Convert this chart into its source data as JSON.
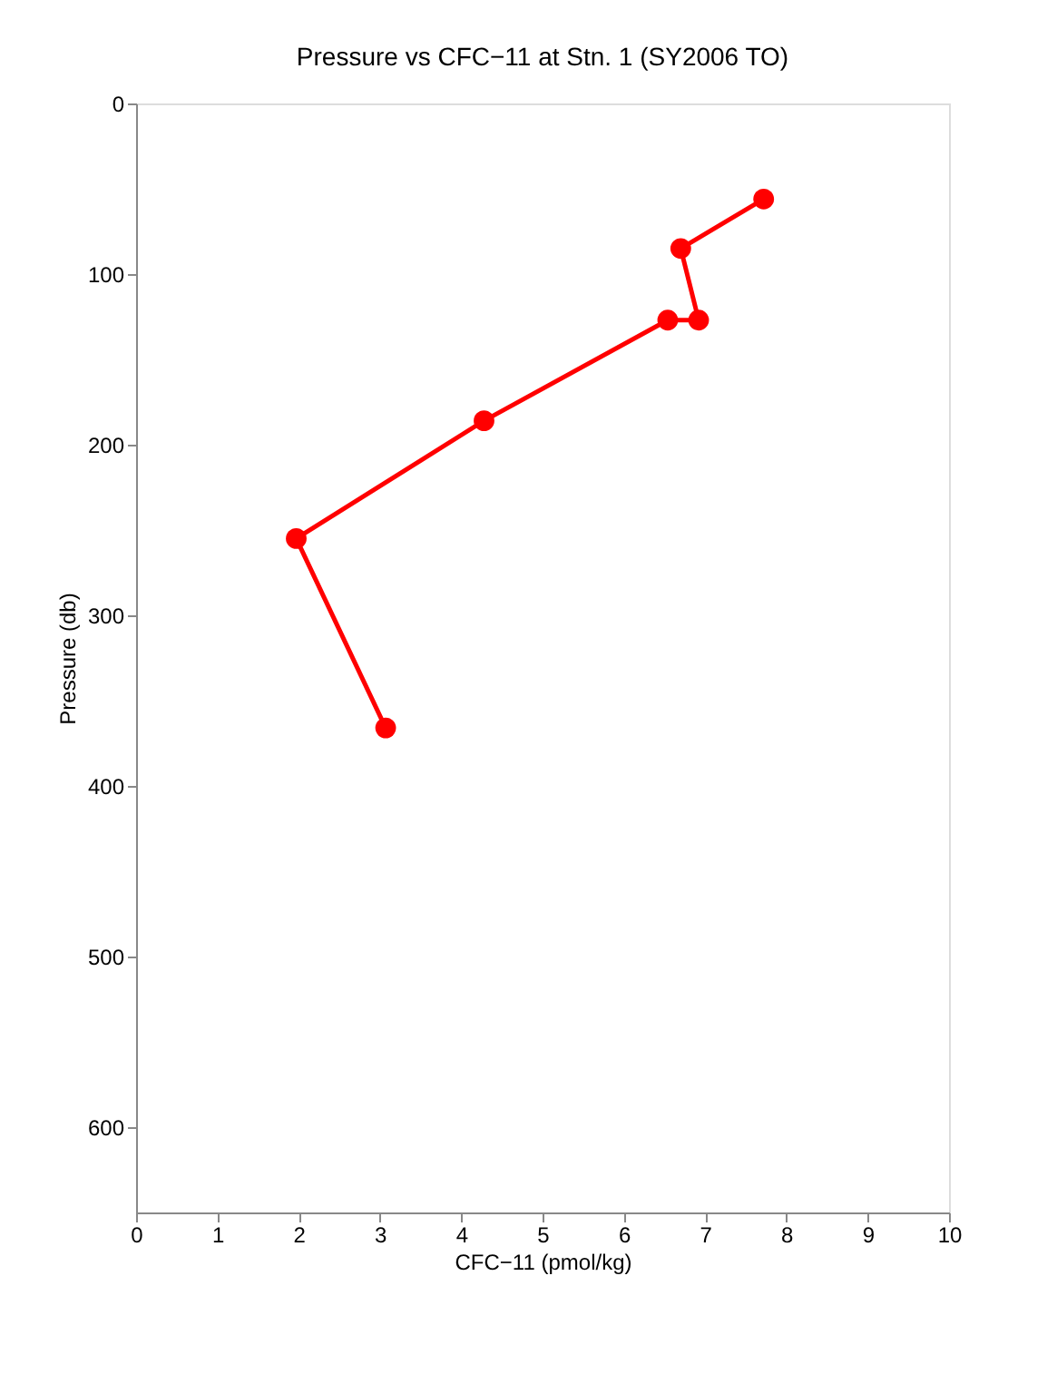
{
  "chart_data": {
    "type": "line",
    "title": "Pressure vs CFC−11 at Stn. 1 (SY2006 TO)",
    "xlabel": "CFC−11 (pmol/kg)",
    "ylabel": "Pressure (db)",
    "series": [
      {
        "color": "#ff0000",
        "x": [
          7.72,
          6.7,
          6.92,
          6.54,
          4.28,
          1.97,
          3.07
        ],
        "values": [
          56,
          85,
          127,
          127,
          186,
          255,
          366
        ]
      }
    ],
    "xlim": [
      0,
      10
    ],
    "xticks": [
      0,
      1,
      2,
      3,
      4,
      5,
      6,
      7,
      8,
      9,
      10
    ],
    "ylim": [
      650,
      0
    ],
    "yticks": [
      0,
      100,
      200,
      300,
      400,
      500,
      600
    ],
    "grid": false,
    "marker": "circle",
    "line_style": "solid"
  }
}
